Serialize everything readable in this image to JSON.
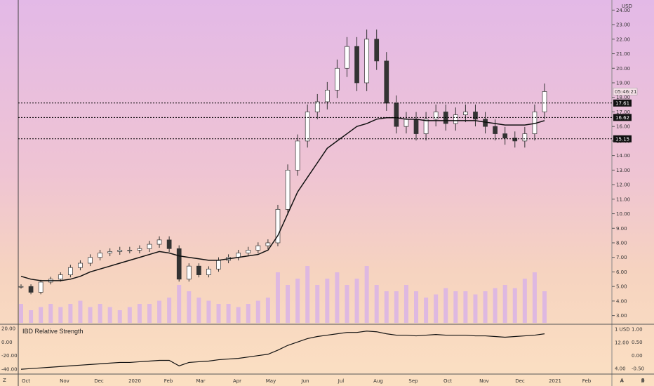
{
  "chart_data": {
    "type": "candlestick",
    "currency": "USD",
    "price_ticks": [
      "3.00",
      "4.00",
      "5.00",
      "6.00",
      "7.00",
      "8.00",
      "9.00",
      "10.00",
      "11.00",
      "12.00",
      "13.00",
      "14.00",
      "15.00",
      "16.00",
      "17.00",
      "18.00",
      "19.00",
      "20.00",
      "21.00",
      "22.00",
      "23.00",
      "24.00"
    ],
    "ylim": [
      2.5,
      24.5
    ],
    "x_labels": [
      "Oct",
      "Nov",
      "Dec",
      "2020",
      "Feb",
      "Mar",
      "Apr",
      "May",
      "Jun",
      "Jul",
      "Aug",
      "Sep",
      "Oct",
      "Nov",
      "Dec",
      "2021",
      "Feb",
      "A",
      "B"
    ],
    "horizontal_levels": [
      {
        "value": 17.61,
        "label": "17.61",
        "color": "#000000"
      },
      {
        "value": 16.62,
        "label": "16.62",
        "color": "#000000"
      },
      {
        "value": 15.15,
        "label": "15.15",
        "color": "#000000"
      }
    ],
    "countdown_label": "05:46:21",
    "last_price": 18.4,
    "price_series": [
      5.0,
      4.6,
      5.3,
      5.5,
      5.8,
      6.3,
      6.6,
      7.0,
      7.3,
      7.4,
      7.5,
      7.5,
      7.6,
      7.9,
      8.2,
      7.6,
      5.5,
      6.4,
      5.8,
      6.2,
      6.8,
      7.0,
      7.3,
      7.5,
      7.8,
      8.0,
      10.3,
      13.0,
      15.0,
      17.0,
      17.7,
      18.5,
      20.0,
      21.5,
      19.0,
      22.0,
      20.5,
      17.6,
      16.0,
      16.5,
      15.5,
      16.5,
      17.0,
      16.2,
      16.8,
      17.0,
      16.5,
      16.0,
      15.5,
      15.2,
      15.0,
      15.5,
      17.0,
      18.4
    ],
    "sma_series": [
      5.7,
      5.5,
      5.4,
      5.4,
      5.4,
      5.5,
      5.7,
      6.0,
      6.2,
      6.4,
      6.6,
      6.8,
      7.0,
      7.2,
      7.4,
      7.3,
      7.1,
      7.0,
      6.9,
      6.8,
      6.8,
      6.9,
      7.0,
      7.1,
      7.2,
      7.5,
      8.5,
      10.0,
      11.5,
      12.5,
      13.5,
      14.5,
      15.0,
      15.5,
      16.0,
      16.2,
      16.5,
      16.6,
      16.6,
      16.5,
      16.5,
      16.4,
      16.4,
      16.4,
      16.4,
      16.4,
      16.4,
      16.3,
      16.2,
      16.1,
      16.1,
      16.1,
      16.2,
      16.4
    ],
    "volume_series": [
      0.3,
      0.2,
      0.25,
      0.3,
      0.25,
      0.3,
      0.35,
      0.25,
      0.3,
      0.25,
      0.2,
      0.25,
      0.3,
      0.3,
      0.35,
      0.4,
      0.6,
      0.5,
      0.4,
      0.35,
      0.3,
      0.3,
      0.25,
      0.3,
      0.35,
      0.4,
      0.8,
      0.6,
      0.7,
      0.9,
      0.6,
      0.7,
      0.8,
      0.6,
      0.7,
      0.9,
      0.6,
      0.5,
      0.5,
      0.6,
      0.5,
      0.4,
      0.45,
      0.55,
      0.5,
      0.5,
      0.45,
      0.5,
      0.55,
      0.6,
      0.55,
      0.7,
      0.8,
      0.5
    ],
    "indicator": {
      "name": "IBD Relative Strength",
      "left_ticks": [
        "20.00",
        "0.00",
        "-20.00",
        "-40.00"
      ],
      "right_ticks": [
        "1.00",
        "0.50",
        "0.00",
        "-0.50"
      ],
      "right_extra_ticks": [
        "1 USD",
        "12.00",
        "4.00"
      ],
      "series": [
        -40,
        -39,
        -38,
        -37,
        -36,
        -35,
        -34,
        -33,
        -32,
        -31,
        -30,
        -30,
        -29,
        -28,
        -27,
        -27,
        -35,
        -30,
        -29,
        -28,
        -26,
        -25,
        -24,
        -22,
        -20,
        -18,
        -12,
        -5,
        0,
        5,
        8,
        10,
        12,
        14,
        14,
        16,
        15,
        12,
        10,
        10,
        9,
        10,
        11,
        10,
        10,
        10,
        9,
        9,
        8,
        7,
        8,
        9,
        10,
        12
      ]
    }
  },
  "corner": {
    "left": "Z",
    "right_a": "A",
    "right_b": "B"
  }
}
